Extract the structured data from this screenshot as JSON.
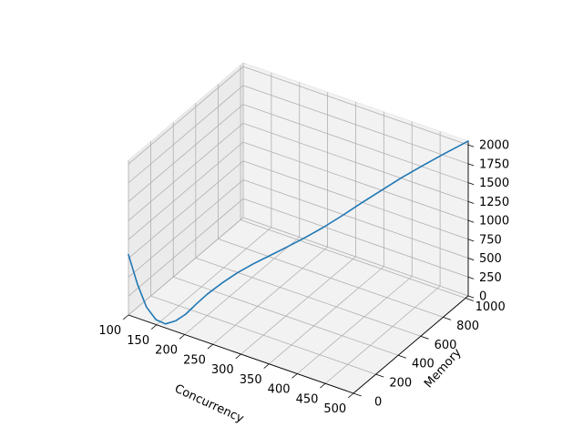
{
  "chart_data": {
    "type": "line",
    "projection": "3d",
    "title": "",
    "xlabel": "Concurrency",
    "ylabel": "Memory",
    "zlabel": "",
    "xlim": [
      100,
      500
    ],
    "ylim": [
      0,
      1024
    ],
    "zlim": [
      0,
      2050
    ],
    "x_ticks": [
      "100",
      "150",
      "200",
      "250",
      "300",
      "350",
      "400",
      "450",
      "500"
    ],
    "y_ticks": [
      "0",
      "200",
      "400",
      "600",
      "800",
      "1000"
    ],
    "z_ticks": [
      "0",
      "250",
      "500",
      "750",
      "1000",
      "1250",
      "1500",
      "1750",
      "2000"
    ],
    "grid": true,
    "series": [
      {
        "color": "#1f77b4",
        "x": [
          100,
          115,
          130,
          145,
          160,
          175,
          190,
          205,
          220,
          240,
          260,
          280,
          300,
          320,
          340,
          360,
          380,
          400,
          420,
          440,
          460,
          480,
          500
        ],
        "y": [
          0,
          5,
          10,
          20,
          30,
          45,
          60,
          80,
          100,
          130,
          170,
          210,
          260,
          310,
          370,
          430,
          500,
          570,
          650,
          730,
          820,
          920,
          1024
        ],
        "z": [
          800,
          440,
          170,
          30,
          0,
          60,
          170,
          320,
          460,
          620,
          760,
          880,
          980,
          1080,
          1180,
          1290,
          1410,
          1540,
          1660,
          1780,
          1880,
          1970,
          2050
        ]
      }
    ]
  }
}
